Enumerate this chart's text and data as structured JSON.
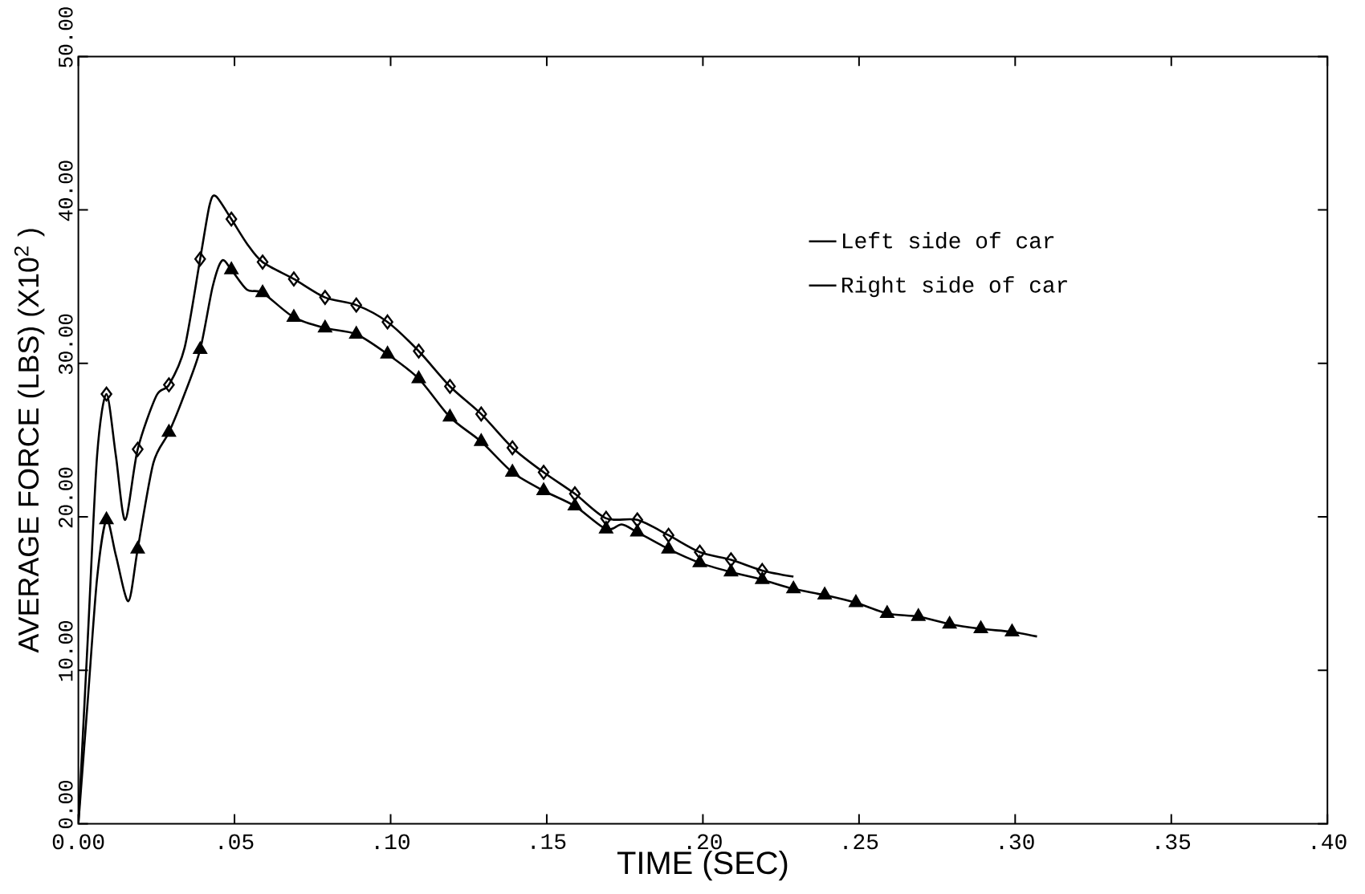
{
  "chart_data": {
    "type": "line",
    "xlabel": "TIME (SEC)",
    "ylabel": "AVERAGE FORCE (LBS) (X10$^{2}$ )",
    "xlim": [
      0,
      0.4
    ],
    "ylim": [
      0,
      50
    ],
    "xticks": [
      {
        "value": 0,
        "label": "0.00"
      },
      {
        "value": 0.05,
        "label": ".05"
      },
      {
        "value": 0.1,
        "label": ".10"
      },
      {
        "value": 0.15,
        "label": ".15"
      },
      {
        "value": 0.2,
        "label": ".20"
      },
      {
        "value": 0.25,
        "label": ".25"
      },
      {
        "value": 0.3,
        "label": ".30"
      },
      {
        "value": 0.35,
        "label": ".35"
      },
      {
        "value": 0.4,
        "label": ".40"
      }
    ],
    "yticks": [
      {
        "value": 0,
        "label": "0.00"
      },
      {
        "value": 10,
        "label": "10.00"
      },
      {
        "value": 20,
        "label": "20.00"
      },
      {
        "value": 30,
        "label": "30.00"
      },
      {
        "value": 40,
        "label": "40.00"
      },
      {
        "value": 50,
        "label": "50.00"
      }
    ],
    "legend": "top right",
    "grid": false,
    "series": [
      {
        "name": "Left side of car",
        "marker": "none",
        "color": "#000000",
        "x": [
          0,
          0.003,
          0.006,
          0.009,
          0.012,
          0.016,
          0.019,
          0.024,
          0.029,
          0.034,
          0.039,
          0.043,
          0.046,
          0.049,
          0.054,
          0.059,
          0.069,
          0.079,
          0.089,
          0.099,
          0.109,
          0.119,
          0.129,
          0.139,
          0.149,
          0.159,
          0.169,
          0.174,
          0.179,
          0.189,
          0.199,
          0.209,
          0.219,
          0.229,
          0.239,
          0.249,
          0.259,
          0.269,
          0.279,
          0.289,
          0.299,
          0.307
        ],
        "values": [
          0,
          8,
          16,
          19.8,
          17.5,
          14.5,
          17.9,
          23.5,
          25.5,
          28,
          30.9,
          35,
          36.7,
          36.1,
          34.8,
          34.6,
          33.0,
          32.3,
          31.9,
          30.6,
          29.0,
          26.5,
          24.9,
          22.9,
          21.7,
          20.7,
          19.2,
          19.5,
          19.0,
          17.9,
          17.0,
          16.4,
          15.9,
          15.3,
          14.9,
          14.4,
          13.7,
          13.5,
          13.0,
          12.7,
          12.5,
          12.2
        ]
      },
      {
        "type": "scatter",
        "marker": "triangle",
        "color": "#000000",
        "x": [
          0.009,
          0.019,
          0.029,
          0.039,
          0.049,
          0.059,
          0.069,
          0.079,
          0.089,
          0.099,
          0.109,
          0.119,
          0.129,
          0.139,
          0.149,
          0.159,
          0.169,
          0.179,
          0.189,
          0.199,
          0.209,
          0.219,
          0.229,
          0.239,
          0.249,
          0.259,
          0.269,
          0.279,
          0.289,
          0.299
        ],
        "values": [
          19.8,
          17.9,
          25.5,
          30.9,
          36.1,
          34.6,
          33.0,
          32.3,
          31.9,
          30.6,
          29.0,
          26.5,
          24.9,
          22.9,
          21.7,
          20.7,
          19.2,
          19.0,
          17.9,
          17.0,
          16.4,
          15.9,
          15.3,
          14.9,
          14.4,
          13.7,
          13.5,
          13.0,
          12.7,
          12.5
        ]
      },
      {
        "name": "Right side of car",
        "marker": "none",
        "color": "#000000",
        "x": [
          0,
          0.003,
          0.006,
          0.009,
          0.012,
          0.015,
          0.019,
          0.025,
          0.029,
          0.034,
          0.039,
          0.042,
          0.044,
          0.049,
          0.054,
          0.059,
          0.069,
          0.079,
          0.089,
          0.099,
          0.109,
          0.119,
          0.129,
          0.139,
          0.149,
          0.159,
          0.169,
          0.179,
          0.189,
          0.199,
          0.209,
          0.219,
          0.229
        ],
        "values": [
          0,
          12,
          24,
          28.0,
          24,
          19.8,
          24.4,
          27.9,
          28.6,
          31,
          36.8,
          40.3,
          40.9,
          39.4,
          37.8,
          36.6,
          35.5,
          34.3,
          33.8,
          32.7,
          30.8,
          28.5,
          26.7,
          24.5,
          22.9,
          21.5,
          19.9,
          19.8,
          18.8,
          17.7,
          17.2,
          16.5,
          16.1
        ]
      },
      {
        "type": "scatter",
        "marker": "diamond",
        "color": "#000000",
        "x": [
          0.009,
          0.019,
          0.029,
          0.039,
          0.049,
          0.059,
          0.069,
          0.079,
          0.089,
          0.099,
          0.109,
          0.119,
          0.129,
          0.139,
          0.149,
          0.159,
          0.169,
          0.179,
          0.189,
          0.199,
          0.209,
          0.219
        ],
        "values": [
          28.0,
          24.4,
          28.6,
          36.8,
          39.4,
          36.6,
          35.5,
          34.3,
          33.8,
          32.7,
          30.8,
          28.5,
          26.7,
          24.5,
          22.9,
          21.5,
          19.9,
          19.8,
          18.8,
          17.7,
          17.2,
          16.5
        ]
      }
    ]
  }
}
